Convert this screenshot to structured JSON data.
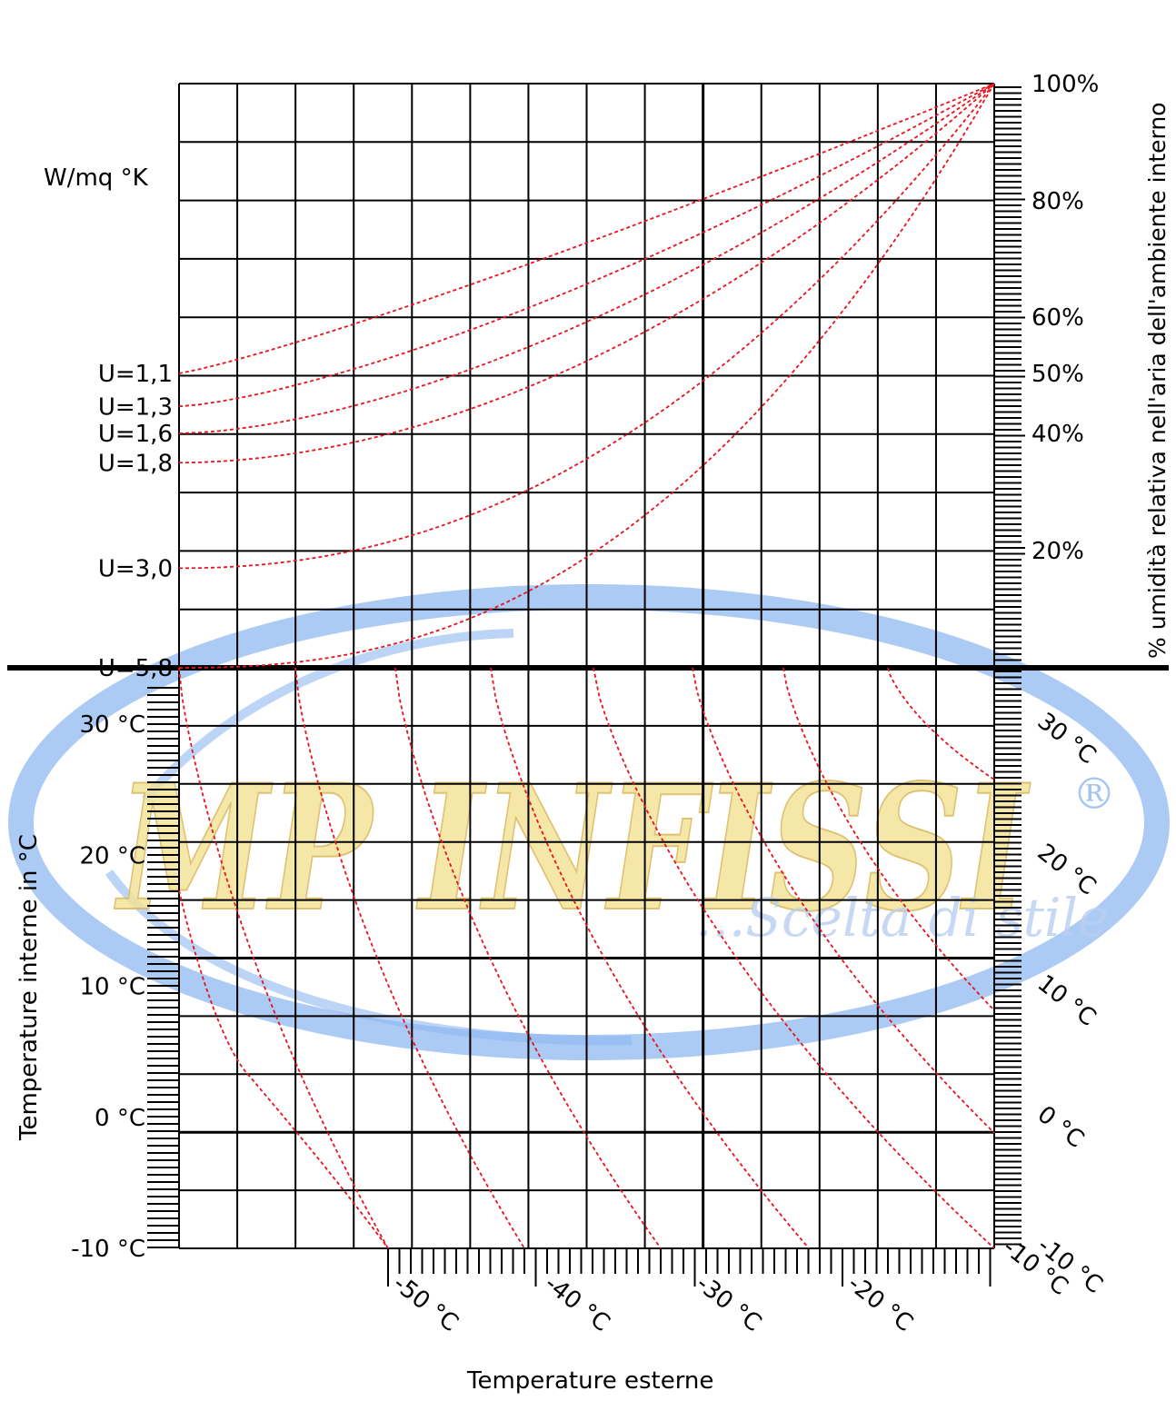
{
  "chart_data": {
    "type": "line",
    "top_panel": {
      "unit_label": "W/mq °K",
      "u_labels": [
        "U=1,1",
        "U=1,3",
        "U=1,6",
        "U=1,8",
        "U=3,0",
        "U=5,8"
      ],
      "u_values": [
        1.1,
        1.3,
        1.6,
        1.8,
        3.0,
        5.8
      ],
      "right_axis_label": "% umidità relativa nell'aria dell'ambiente interno",
      "humidity_ticks": [
        {
          "value": 100,
          "label": "100%"
        },
        {
          "value": 80,
          "label": "80%"
        },
        {
          "value": 60,
          "label": "60%"
        },
        {
          "value": 50,
          "label": "50%"
        },
        {
          "value": 40,
          "label": "40%"
        },
        {
          "value": 20,
          "label": "20%"
        }
      ],
      "series_start_humidity": [
        50,
        44.5,
        40,
        35,
        17,
        0
      ],
      "series_end_humidity": 100
    },
    "bottom_panel": {
      "y_axis_label": "Temperature interne in °C",
      "y_ticks": [
        {
          "value": 30,
          "label": "30 °C"
        },
        {
          "value": 20,
          "label": "20 °C"
        },
        {
          "value": 10,
          "label": "10 °C"
        },
        {
          "value": 0,
          "label": "0 °C"
        },
        {
          "value": -10,
          "label": "-10 °C"
        }
      ],
      "x_axis_label": "Temperature esterne",
      "x_ticks": [
        {
          "value": -50,
          "label": "-50 °C"
        },
        {
          "value": -40,
          "label": "-40 °C"
        },
        {
          "value": -30,
          "label": "-30 °C"
        },
        {
          "value": -20,
          "label": "-20 °C"
        },
        {
          "value": -10,
          "label": "-10 °C"
        }
      ],
      "right_labels": [
        {
          "value": 30,
          "label": "30 °C"
        },
        {
          "value": 20,
          "label": "20 °C"
        },
        {
          "value": 10,
          "label": "10 °C"
        },
        {
          "value": 0,
          "label": "0 °C"
        },
        {
          "value": -10,
          "label": "-10 °C"
        }
      ]
    },
    "grid": true,
    "curve_color": "#e8141e",
    "grid_color": "#000000"
  },
  "watermark": {
    "brand": "MP INFISSI",
    "registered": "®",
    "tagline": "...Scelta di stile",
    "ring_color": "#8fb8f0",
    "letter_color": "#f3e39a",
    "tagline_color": "#b9cff2"
  }
}
